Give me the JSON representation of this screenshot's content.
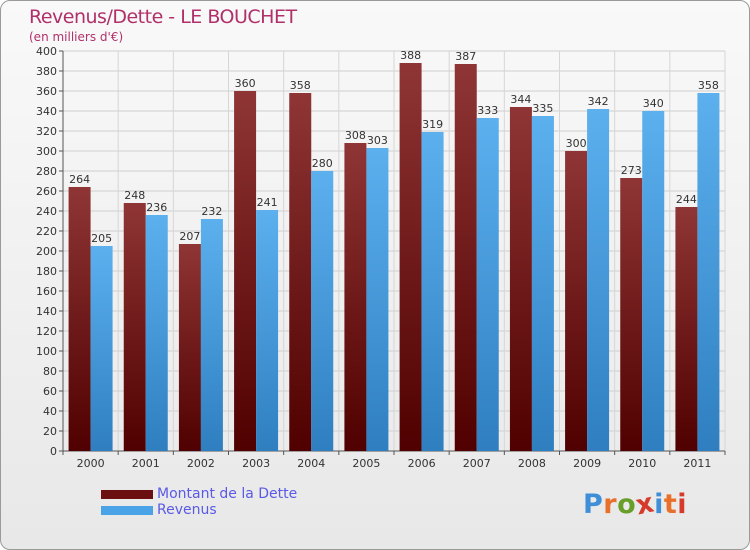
{
  "header": {
    "title": "Revenus/Dette - LE BOUCHET",
    "subtitle": "(en milliers d'€)"
  },
  "legend": {
    "items": [
      {
        "label": "Montant de la Dette",
        "color": "#6b0f10"
      },
      {
        "label": "Revenus",
        "color": "#4aa3e6"
      }
    ]
  },
  "logo": {
    "text": "Proxiti",
    "letter_colors": [
      "#3f8fd8",
      "#e8702a",
      "#6a9e2a",
      "#d63a2a",
      "#3f8fd8",
      "#e8702a",
      "#d63a2a"
    ]
  },
  "chart_data": {
    "type": "bar",
    "categories": [
      "2000",
      "2001",
      "2002",
      "2003",
      "2004",
      "2005",
      "2006",
      "2007",
      "2008",
      "2009",
      "2010",
      "2011"
    ],
    "series": [
      {
        "name": "Montant de la Dette",
        "values": [
          264,
          248,
          207,
          360,
          358,
          308,
          388,
          387,
          344,
          300,
          273,
          244
        ],
        "color_top": "#8f3535",
        "color_bottom": "#500000"
      },
      {
        "name": "Revenus",
        "values": [
          205,
          236,
          232,
          241,
          280,
          303,
          319,
          333,
          335,
          342,
          340,
          358
        ],
        "color_top": "#5cb0ee",
        "color_bottom": "#2f7fc0"
      }
    ],
    "title": "Revenus/Dette - LE BOUCHET",
    "subtitle": "(en milliers d'€)",
    "xlabel": "",
    "ylabel": "",
    "ylim": [
      0,
      400
    ],
    "ytick_step": 20,
    "grid": true,
    "legend_position": "bottom-left"
  }
}
